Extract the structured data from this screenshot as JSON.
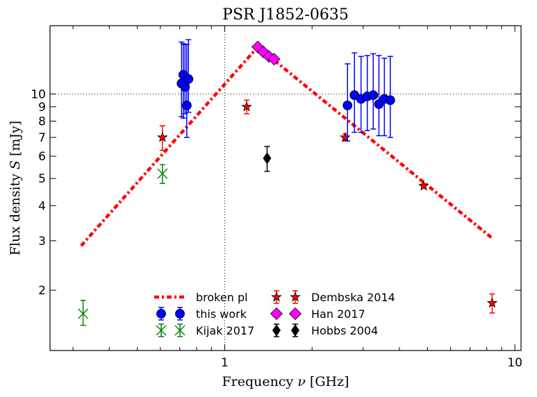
{
  "chart_data": {
    "type": "scatter",
    "title": "PSR J1852-0635",
    "xlabel": "Frequency ν [GHz]",
    "ylabel": "Flux density S [mJy]",
    "xscale": "log",
    "yscale": "log",
    "xlim": [
      0.25,
      10.5
    ],
    "ylim": [
      1.22,
      17.5
    ],
    "xticks": [
      1,
      10
    ],
    "yticks": [
      2,
      3,
      4,
      5,
      6,
      7,
      8,
      9,
      10
    ],
    "reference_lines": {
      "x": 1,
      "y": 10
    },
    "legend_position": "lower-center",
    "series": [
      {
        "name": "broken pl",
        "kind": "line",
        "color": "#ff0000",
        "points": [
          [
            0.32,
            2.88
          ],
          [
            1.3,
            14.7
          ],
          [
            8.3,
            3.08
          ]
        ]
      },
      {
        "name": "this work",
        "kind": "marker",
        "marker": "circle",
        "color": "#0000ff",
        "points": [
          {
            "x": 0.71,
            "y": 10.9,
            "lo": 8.3,
            "hi": 15.3
          },
          {
            "x": 0.72,
            "y": 11.7,
            "lo": 8.2,
            "hi": 15.1
          },
          {
            "x": 0.73,
            "y": 10.6,
            "lo": 8.5,
            "hi": 15.0
          },
          {
            "x": 0.74,
            "y": 9.1,
            "lo": 7.0,
            "hi": 15.0
          },
          {
            "x": 0.75,
            "y": 11.3,
            "lo": 8.6,
            "hi": 15.6
          },
          {
            "x": 2.65,
            "y": 9.1,
            "lo": 6.8,
            "hi": 12.8
          },
          {
            "x": 2.8,
            "y": 9.9,
            "lo": 7.3,
            "hi": 14.0
          },
          {
            "x": 2.95,
            "y": 9.6,
            "lo": 7.3,
            "hi": 13.6
          },
          {
            "x": 3.1,
            "y": 9.8,
            "lo": 7.4,
            "hi": 13.7
          },
          {
            "x": 3.25,
            "y": 9.9,
            "lo": 7.5,
            "hi": 13.9
          },
          {
            "x": 3.4,
            "y": 9.2,
            "lo": 7.1,
            "hi": 13.7
          },
          {
            "x": 3.55,
            "y": 9.6,
            "lo": 7.1,
            "hi": 13.4
          },
          {
            "x": 3.72,
            "y": 9.5,
            "lo": 7.0,
            "hi": 13.6
          }
        ]
      },
      {
        "name": "Kijak 2017",
        "kind": "marker",
        "marker": "x",
        "color": "#008000",
        "points": [
          {
            "x": 0.325,
            "y": 1.65,
            "lo": 1.5,
            "hi": 1.84
          },
          {
            "x": 0.61,
            "y": 5.2,
            "lo": 4.8,
            "hi": 5.6
          }
        ]
      },
      {
        "name": "Hobbs 2004",
        "kind": "marker",
        "marker": "thin_diamond",
        "color": "#000000",
        "points": [
          {
            "x": 1.4,
            "y": 5.9,
            "lo": 5.3,
            "hi": 6.5
          }
        ]
      },
      {
        "name": "Dembska 2014",
        "kind": "marker",
        "marker": "star",
        "color": "#ff0000",
        "points": [
          {
            "x": 0.61,
            "y": 7.0,
            "lo": 6.3,
            "hi": 7.7
          },
          {
            "x": 1.19,
            "y": 9.0,
            "lo": 8.5,
            "hi": 9.5
          },
          {
            "x": 2.6,
            "y": 7.0,
            "lo": 6.8,
            "hi": 7.2
          },
          {
            "x": 4.85,
            "y": 4.7,
            "lo": 4.62,
            "hi": 4.78
          },
          {
            "x": 8.35,
            "y": 1.8,
            "lo": 1.66,
            "hi": 1.94
          }
        ]
      },
      {
        "name": "Han 2017",
        "kind": "marker",
        "marker": "diamond",
        "color": "#ff00ff",
        "points": [
          {
            "x": 1.3,
            "y": 14.7,
            "lo": 14.7,
            "hi": 14.7
          },
          {
            "x": 1.36,
            "y": 14.1,
            "lo": 14.1,
            "hi": 14.1
          },
          {
            "x": 1.42,
            "y": 13.6,
            "lo": 13.6,
            "hi": 13.6
          },
          {
            "x": 1.48,
            "y": 13.3,
            "lo": 13.3,
            "hi": 13.3
          }
        ]
      }
    ],
    "legend": {
      "left": [
        "broken pl",
        "this work",
        "Kijak 2017"
      ],
      "right": [
        "Dembska 2014",
        "Han 2017",
        "Hobbs 2004"
      ]
    }
  }
}
